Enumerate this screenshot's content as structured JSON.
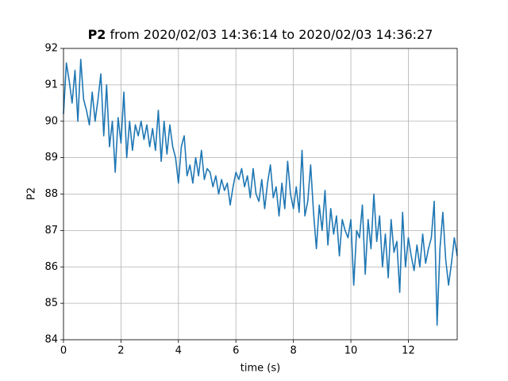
{
  "chart_data": {
    "type": "line",
    "title_bold": "P2",
    "title": "from 2020/02/03 14:36:14 to 2020/02/03 14:36:27",
    "x_label": "time (s)",
    "y_label": "P2",
    "xlim": [
      0,
      13.7
    ],
    "ylim": [
      84,
      92
    ],
    "xticks": [
      0,
      2,
      4,
      6,
      8,
      10,
      12
    ],
    "yticks": [
      84,
      85,
      86,
      87,
      88,
      89,
      90,
      91,
      92
    ],
    "grid": true,
    "x": [
      0.0,
      0.1,
      0.2,
      0.3,
      0.4,
      0.5,
      0.6,
      0.7,
      0.8,
      0.9,
      1.0,
      1.1,
      1.2,
      1.3,
      1.4,
      1.5,
      1.6,
      1.7,
      1.8,
      1.9,
      2.0,
      2.1,
      2.2,
      2.3,
      2.4,
      2.5,
      2.6,
      2.7,
      2.8,
      2.9,
      3.0,
      3.1,
      3.2,
      3.3,
      3.4,
      3.5,
      3.6,
      3.7,
      3.8,
      3.9,
      4.0,
      4.1,
      4.2,
      4.3,
      4.4,
      4.5,
      4.6,
      4.7,
      4.8,
      4.9,
      5.0,
      5.1,
      5.2,
      5.3,
      5.4,
      5.5,
      5.6,
      5.7,
      5.8,
      5.9,
      6.0,
      6.1,
      6.2,
      6.3,
      6.4,
      6.5,
      6.6,
      6.7,
      6.8,
      6.9,
      7.0,
      7.1,
      7.2,
      7.3,
      7.4,
      7.5,
      7.6,
      7.7,
      7.8,
      7.9,
      8.0,
      8.1,
      8.2,
      8.3,
      8.4,
      8.5,
      8.6,
      8.7,
      8.8,
      8.9,
      9.0,
      9.1,
      9.2,
      9.3,
      9.4,
      9.5,
      9.6,
      9.7,
      9.8,
      9.9,
      10.0,
      10.1,
      10.2,
      10.3,
      10.4,
      10.5,
      10.6,
      10.7,
      10.8,
      10.9,
      11.0,
      11.1,
      11.2,
      11.3,
      11.4,
      11.5,
      11.6,
      11.7,
      11.8,
      11.9,
      12.0,
      12.1,
      12.2,
      12.3,
      12.4,
      12.5,
      12.6,
      12.7,
      12.8,
      12.9,
      13.0,
      13.1,
      13.2,
      13.3,
      13.4,
      13.5,
      13.6,
      13.7
    ],
    "series": [
      {
        "name": "P2",
        "color": "#1f77b4",
        "values": [
          90.2,
          91.6,
          91.1,
          90.5,
          91.4,
          90.0,
          91.7,
          90.6,
          90.3,
          89.9,
          90.8,
          90.0,
          90.6,
          91.3,
          89.6,
          91.0,
          89.3,
          90.0,
          88.6,
          90.1,
          89.4,
          90.8,
          89.0,
          90.0,
          89.2,
          89.9,
          89.6,
          90.0,
          89.5,
          89.9,
          89.3,
          89.8,
          89.2,
          90.3,
          88.9,
          90.0,
          89.1,
          89.9,
          89.3,
          89.0,
          88.3,
          89.3,
          89.6,
          88.5,
          88.8,
          88.3,
          89.0,
          88.5,
          89.2,
          88.4,
          88.7,
          88.6,
          88.2,
          88.5,
          88.0,
          88.4,
          88.1,
          88.3,
          87.7,
          88.2,
          88.6,
          88.4,
          88.7,
          88.2,
          88.5,
          87.9,
          88.7,
          88.0,
          87.8,
          88.4,
          87.6,
          88.3,
          88.8,
          87.9,
          88.2,
          87.4,
          88.3,
          87.6,
          88.9,
          88.0,
          87.6,
          88.2,
          87.5,
          89.2,
          87.4,
          87.8,
          88.8,
          87.5,
          86.5,
          87.7,
          87.0,
          88.1,
          86.6,
          87.6,
          86.9,
          87.4,
          86.3,
          87.3,
          87.0,
          86.8,
          87.3,
          85.5,
          87.0,
          86.8,
          87.7,
          85.8,
          87.3,
          86.5,
          88.0,
          86.7,
          87.4,
          86.0,
          86.9,
          85.7,
          87.3,
          86.4,
          86.7,
          85.3,
          87.5,
          86.0,
          86.8,
          86.3,
          85.9,
          86.6,
          86.0,
          86.9,
          86.1,
          86.5,
          86.8,
          87.8,
          84.4,
          86.5,
          87.5,
          86.2,
          85.5,
          86.1,
          86.8,
          86.3
        ]
      }
    ]
  }
}
